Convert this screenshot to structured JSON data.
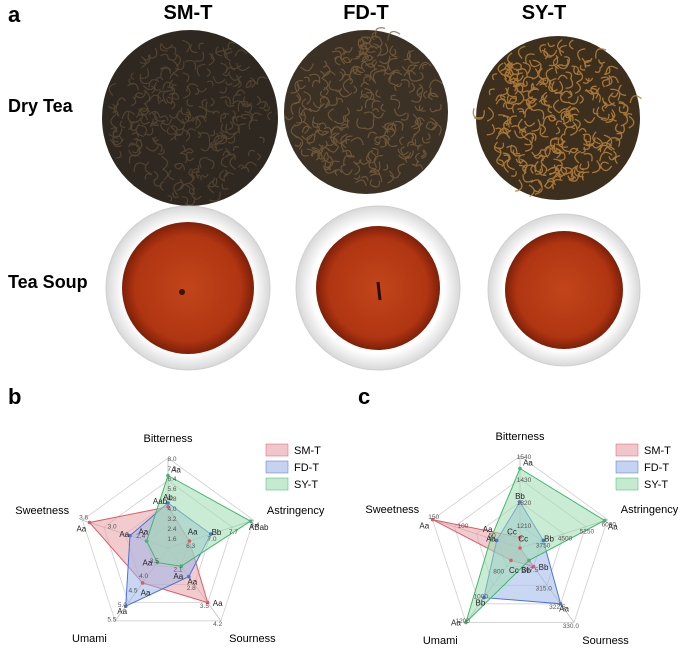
{
  "panel_a": {
    "letter": "a",
    "columns": [
      "SM-T",
      "FD-T",
      "SY-T"
    ],
    "rows": [
      "Dry Tea",
      "Tea Soup"
    ]
  },
  "panel_b": {
    "letter": "b"
  },
  "panel_c": {
    "letter": "c"
  },
  "colors": {
    "SM-T": "#e8a0a8",
    "FD-T": "#9fb6e8",
    "SY-T": "#9fdcb0",
    "SM-T-line": "#e05a6a",
    "FD-T-line": "#4a72d8",
    "SY-T-line": "#3fb86a",
    "tea_dark": "#3a2f22",
    "tea_light_tips": "#b07a35",
    "soup": "#b83a14"
  },
  "chart_data": [
    {
      "type": "radar",
      "axes": [
        "Bitterness",
        "Astringency",
        "Sourness",
        "Umami",
        "Sweetness"
      ],
      "axis_ticks": [
        [
          "1.6",
          "2.4",
          "3.2",
          "4.0",
          "4.8",
          "5.6",
          "6.4",
          "7.2",
          "8.0"
        ],
        [
          "6.3",
          "7.0",
          "7.7",
          "8.4"
        ],
        [
          "2.1",
          "2.8",
          "3.5",
          "4.2"
        ],
        [
          "3.5",
          "4.0",
          "4.5",
          "5.0",
          "5.5"
        ],
        [
          "2.4",
          "3.0",
          "3.6"
        ]
      ],
      "series": [
        {
          "name": "SM-T",
          "values": [
            4.1,
            6.3,
            3.5,
            4.2,
            3.45
          ]
        },
        {
          "name": "FD-T",
          "values": [
            4.4,
            7.0,
            2.5,
            5.0,
            2.6
          ]
        },
        {
          "name": "SY-T",
          "values": [
            6.6,
            8.3,
            2.1,
            3.5,
            2.25
          ]
        }
      ],
      "letters": [
        [
          "Aab",
          "Aa",
          "Aa",
          "Aa",
          "Aa"
        ],
        [
          "Ab",
          "Bb",
          "Aa",
          "Aa",
          "Aa"
        ],
        [
          "Aa",
          "ABab",
          "Aa",
          "Aa",
          "Aa"
        ]
      ],
      "legend": [
        "SM-T",
        "FD-T",
        "SY-T"
      ],
      "legend_position": "top-right"
    },
    {
      "type": "radar",
      "axes": [
        "Bitterness",
        "Astringency",
        "Sourness",
        "Umami",
        "Sweetness"
      ],
      "axis_ticks": [
        [
          "1210",
          "1320",
          "1430",
          "1540"
        ],
        [
          "3750",
          "4500",
          "5250",
          "6000"
        ],
        [
          "307.5",
          "315.0",
          "322.5",
          "330.0"
        ],
        [
          "800",
          "1000",
          "1200"
        ],
        [
          "50",
          "100",
          "150"
        ]
      ],
      "series": [
        {
          "name": "SM-T",
          "values": [
            1150,
            3000,
            307.5,
            700,
            150
          ]
        },
        {
          "name": "FD-T",
          "values": [
            1320,
            3800,
            322.5,
            1000,
            40
          ]
        },
        {
          "name": "SY-T",
          "values": [
            1480,
            5900,
            305,
            1200,
            50
          ]
        }
      ],
      "letters": [
        [
          "Cc",
          "Cc",
          "Bb",
          "Cc",
          "Aa"
        ],
        [
          "Bb",
          "Bb",
          "Aa",
          "Bb",
          "Aa"
        ],
        [
          "Aa",
          "Aa",
          "Bb",
          "Aa",
          "Aa"
        ]
      ],
      "legend": [
        "SM-T",
        "FD-T",
        "SY-T"
      ],
      "legend_position": "top-right"
    }
  ]
}
